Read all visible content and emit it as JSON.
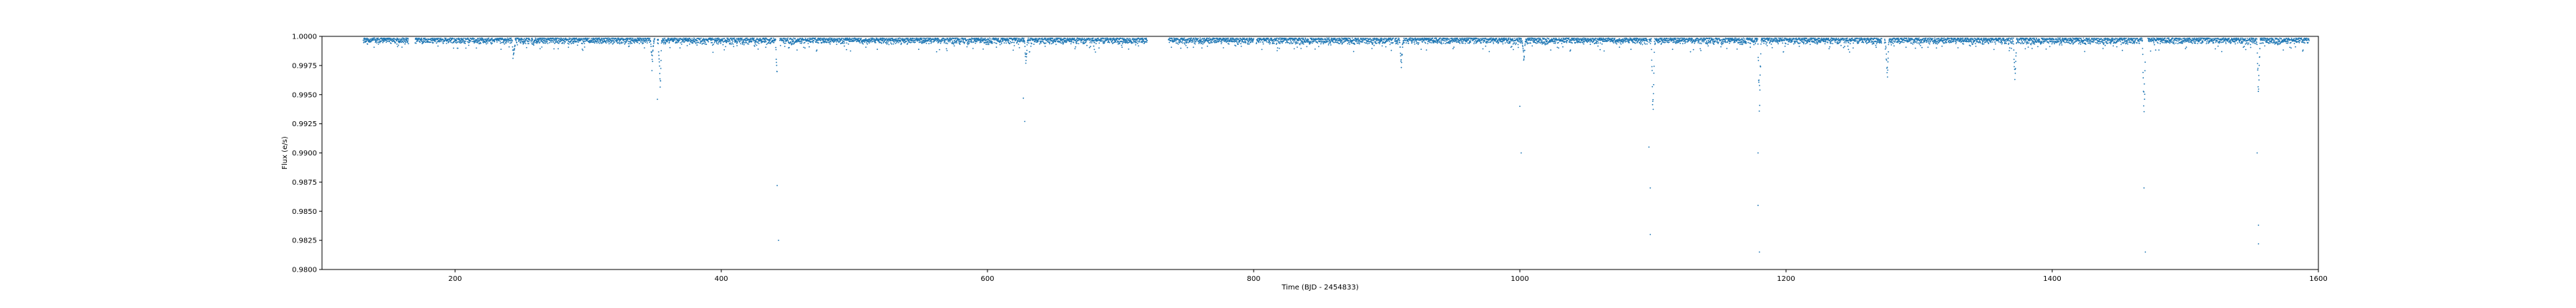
{
  "chart_data": {
    "type": "scatter",
    "title": "",
    "xlabel": "Time (BJD - 2454833)",
    "ylabel": "Flux (e/s)",
    "xlim": [
      100,
      1600
    ],
    "ylim": [
      0.98,
      1.0
    ],
    "x_ticks": [
      200,
      400,
      600,
      800,
      1000,
      1200,
      1400,
      1600
    ],
    "y_ticks": [
      0.98,
      0.9825,
      0.985,
      0.9875,
      0.99,
      0.9925,
      0.995,
      0.9975,
      1.0
    ],
    "x_tick_labels": [
      "200",
      "400",
      "600",
      "800",
      "1000",
      "1200",
      "1400",
      "1600"
    ],
    "y_tick_labels": [
      "0.9800",
      "0.9825",
      "0.9850",
      "0.9875",
      "0.9900",
      "0.9925",
      "0.9950",
      "0.9975",
      "1.0000"
    ],
    "grid": false,
    "legend": "none",
    "marker_color": "#1f77b4",
    "baseline_flux": 0.99985,
    "observing_segments": [
      [
        131,
        165
      ],
      [
        170,
        183
      ],
      [
        183,
        256
      ],
      [
        257,
        350
      ],
      [
        352,
        442
      ],
      [
        444,
        540
      ],
      [
        540,
        632
      ],
      [
        632,
        720
      ],
      [
        736,
        800
      ],
      [
        802,
        905
      ],
      [
        906,
        1000
      ],
      [
        1000,
        1096
      ],
      [
        1097,
        1181
      ],
      [
        1181,
        1272
      ],
      [
        1274,
        1370
      ],
      [
        1370,
        1470
      ],
      [
        1472,
        1560
      ],
      [
        1560,
        1593
      ]
    ],
    "transit_dips": [
      {
        "time": 244,
        "min_flux": 0.9982
      },
      {
        "time": 348,
        "min_flux": 0.9975
      },
      {
        "time": 354,
        "min_flux": 0.9945
      },
      {
        "time": 442,
        "min_flux": 0.9952
      },
      {
        "time": 629,
        "min_flux": 0.9975
      },
      {
        "time": 911,
        "min_flux": 0.9973
      },
      {
        "time": 1003,
        "min_flux": 0.9975
      },
      {
        "time": 1100,
        "min_flux": 0.9918
      },
      {
        "time": 1180,
        "min_flux": 0.9925
      },
      {
        "time": 1276,
        "min_flux": 0.9958
      },
      {
        "time": 1372,
        "min_flux": 0.9955
      },
      {
        "time": 1469,
        "min_flux": 0.9918
      },
      {
        "time": 1555,
        "min_flux": 0.9945
      }
    ],
    "outlier_points": [
      {
        "x": 352,
        "y": 0.9946
      },
      {
        "x": 442,
        "y": 0.9872
      },
      {
        "x": 443,
        "y": 0.9825
      },
      {
        "x": 627,
        "y": 0.9947
      },
      {
        "x": 628,
        "y": 0.9927
      },
      {
        "x": 1000,
        "y": 0.994
      },
      {
        "x": 1001,
        "y": 0.99
      },
      {
        "x": 1097,
        "y": 0.9905
      },
      {
        "x": 1098,
        "y": 0.987
      },
      {
        "x": 1098,
        "y": 0.983
      },
      {
        "x": 1179,
        "y": 0.99
      },
      {
        "x": 1179,
        "y": 0.9855
      },
      {
        "x": 1180,
        "y": 0.9815
      },
      {
        "x": 1469,
        "y": 0.987
      },
      {
        "x": 1470,
        "y": 0.9815
      },
      {
        "x": 1554,
        "y": 0.99
      },
      {
        "x": 1555,
        "y": 0.9838
      },
      {
        "x": 1555,
        "y": 0.9822
      }
    ]
  }
}
